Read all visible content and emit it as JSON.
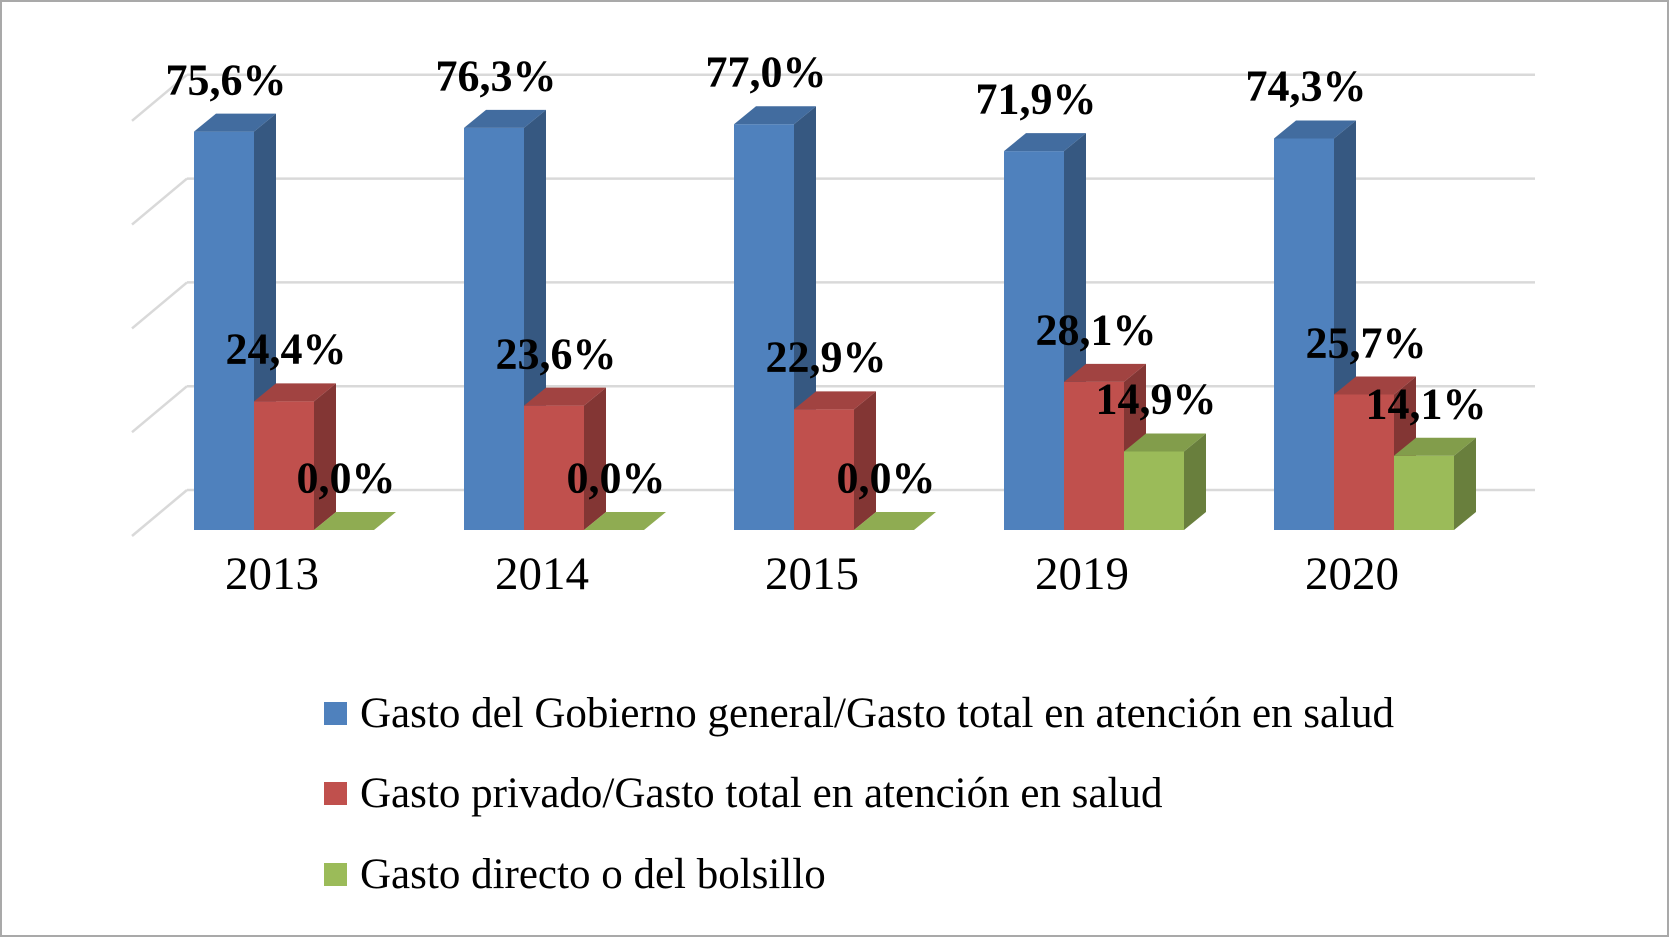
{
  "frame": {
    "border_color": "#a9a9a9",
    "background": "#ffffff"
  },
  "chart_data": {
    "type": "bar",
    "style": "3d-clustered",
    "title": "",
    "xlabel": "",
    "ylabel": "",
    "categories": [
      "2013",
      "2014",
      "2015",
      "2019",
      "2020"
    ],
    "series": [
      {
        "name": "Gasto del Gobierno general/Gasto total en atención en salud",
        "color": "#4F81BD",
        "values": [
          75.6,
          76.3,
          77.0,
          71.9,
          74.3
        ],
        "labels": [
          "75,6%",
          "76,3%",
          "77,0%",
          "71,9%",
          "74,3%"
        ]
      },
      {
        "name": "Gasto privado/Gasto total en atención en salud",
        "color": "#C0504D",
        "values": [
          24.4,
          23.6,
          22.9,
          28.1,
          25.7
        ],
        "labels": [
          "24,4%",
          "23,6%",
          "22,9%",
          "28,1%",
          "25,7%"
        ]
      },
      {
        "name": "Gasto directo o del bolsillo",
        "color": "#9BBB59",
        "values": [
          0.0,
          0.0,
          0.0,
          14.9,
          14.1
        ],
        "labels": [
          "0,0%",
          "0,0%",
          "0,0%",
          "14,9%",
          "14,1%"
        ]
      }
    ],
    "ylim": [
      0,
      80
    ],
    "gridline_values_pct": [
      0,
      20,
      40,
      60,
      80
    ],
    "grid": true,
    "gridline_color": "#d9d9d9",
    "legend_position": "bottom-left",
    "value_format": "percent-comma-decimal",
    "data_labels_shown": true
  }
}
